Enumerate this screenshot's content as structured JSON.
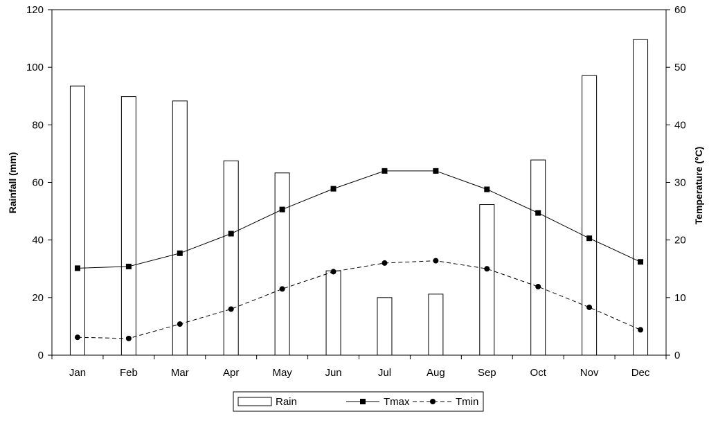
{
  "chart_data": {
    "type": "bar+line",
    "categories": [
      "Jan",
      "Feb",
      "Mar",
      "Apr",
      "May",
      "Jun",
      "Jul",
      "Aug",
      "Sep",
      "Oct",
      "Nov",
      "Dec"
    ],
    "rain": {
      "name": "Rain",
      "axis": "left",
      "values": [
        93.5,
        89.8,
        88.3,
        67.5,
        63.3,
        29.3,
        20.0,
        21.2,
        52.3,
        67.8,
        97.1,
        109.6
      ]
    },
    "series": [
      {
        "name": "Tmax",
        "axis": "right",
        "style": "solid",
        "marker": "square",
        "values": [
          15.1,
          15.4,
          17.7,
          21.1,
          25.3,
          28.9,
          32.0,
          32.0,
          28.8,
          24.7,
          20.3,
          16.2
        ]
      },
      {
        "name": "Tmin",
        "axis": "right",
        "style": "dashed",
        "marker": "circle",
        "values": [
          3.1,
          2.9,
          5.4,
          8.0,
          11.5,
          14.5,
          16.0,
          16.4,
          15.0,
          11.9,
          8.3,
          4.4
        ]
      }
    ],
    "ylabel": "Rainfall (mm)",
    "ylabel_right": "Temperature (°C)",
    "ylim": [
      0,
      120
    ],
    "ylim_right": [
      0,
      60
    ],
    "yticks": [
      "0",
      "20",
      "40",
      "60",
      "80",
      "100",
      "120"
    ],
    "yticks_right": [
      "0",
      "10",
      "20",
      "30",
      "40",
      "50",
      "60"
    ],
    "legend_position": "bottom-center",
    "legend": [
      "Rain",
      "Tmax",
      "Tmin"
    ],
    "grid": false
  }
}
